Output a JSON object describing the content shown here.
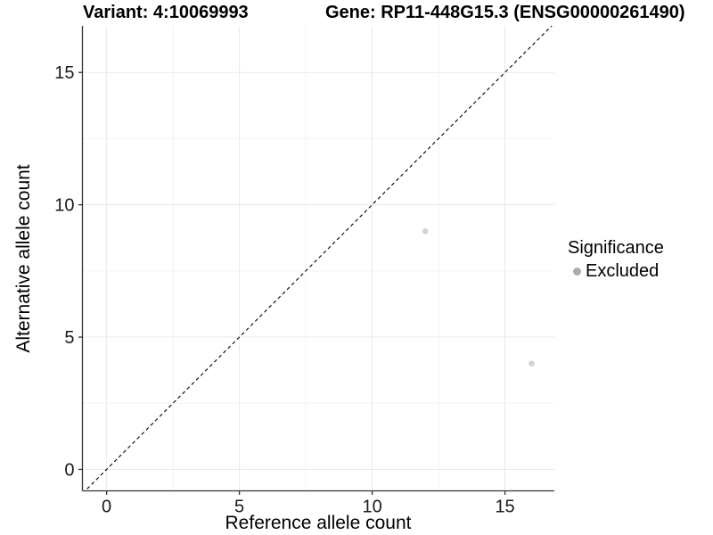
{
  "chart_data": {
    "type": "scatter",
    "titles": {
      "left": "Variant: 4:10069993",
      "right": "Gene: RP11-448G15.3 (ENSG00000261490)"
    },
    "xlabel": "Reference allele count",
    "ylabel": "Alternative allele count",
    "xlim": [
      -0.91,
      16.86
    ],
    "ylim": [
      -0.81,
      16.76
    ],
    "x_ticks": [
      0,
      5,
      10,
      15
    ],
    "y_ticks": [
      0,
      5,
      10,
      15
    ],
    "x_minor_ticks": [
      2.5,
      7.5,
      12.5
    ],
    "y_minor_ticks": [
      2.5,
      7.5,
      12.5
    ],
    "grid": true,
    "legend_position": "right",
    "series": [
      {
        "name": "Excluded",
        "color": "#d3d3d3",
        "points": [
          {
            "x": 12,
            "y": 9
          },
          {
            "x": 16,
            "y": 4
          }
        ]
      }
    ],
    "reference_line": {
      "slope": 1,
      "intercept": 0,
      "style": "dashed",
      "color": "#000000"
    },
    "legend": {
      "title": "Significance",
      "items": [
        {
          "label": "Excluded",
          "color": "#ababab"
        }
      ]
    },
    "colors": {
      "grid_major": "#e9e9e9",
      "grid_minor": "#f4f4f4",
      "axis_line": "#333333",
      "tick_mark": "#333333",
      "tick_label": "#1a1a1a",
      "background": "#ffffff"
    }
  }
}
